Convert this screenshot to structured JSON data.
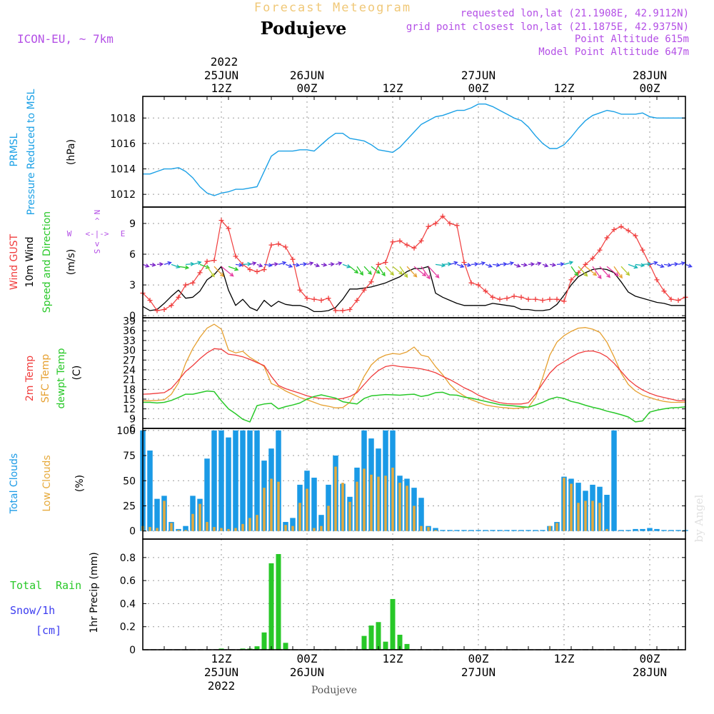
{
  "header": {
    "title_faint": "Forecast Meteogram",
    "place": "Podujeve",
    "model": "ICON-EU, ~ 7km",
    "requested": "requested lon,lat (21.1908E, 42.9112N)",
    "gridpoint": "grid point closest lon,lat (21.1875E, 42.9375N)",
    "point_alt": "Point Altitude 615m",
    "model_alt": "Model Point Altitude 647m",
    "footer_place": "Podujeve",
    "watermark": "by Angel"
  },
  "time_axis": {
    "top_year": "2022",
    "ticks": [
      {
        "h": 12,
        "top": [
          "25JUN",
          "12Z"
        ],
        "bottom": [
          "12Z",
          "25JUN",
          "2022"
        ]
      },
      {
        "h": 24,
        "top": [
          "26JUN",
          "00Z"
        ],
        "bottom": [
          "00Z",
          "26JUN"
        ]
      },
      {
        "h": 36,
        "top": [
          "12Z"
        ],
        "bottom": [
          "12Z"
        ]
      },
      {
        "h": 48,
        "top": [
          "27JUN",
          "00Z"
        ],
        "bottom": [
          "00Z",
          "27JUN"
        ]
      },
      {
        "h": 60,
        "top": [
          "12Z"
        ],
        "bottom": [
          "12Z"
        ]
      },
      {
        "h": 72,
        "top": [
          "28JUN",
          "00Z"
        ],
        "bottom": [
          "00Z",
          "28JUN"
        ]
      }
    ],
    "hour_range": [
      1,
      77
    ]
  },
  "panel_labels": {
    "pressure": {
      "l1": "PRMSL",
      "l2": "Pressure Reduced to MSL",
      "unit": "(hPa)"
    },
    "wind": {
      "l1": "Wind GUST",
      "l2": "10m Wind",
      "l3": "Speed and Direction",
      "unit": "(m/s)",
      "compass": {
        "n": "N",
        "s": "S",
        "w": "W",
        "e": "E",
        "v": "^",
        "h": "<-|->",
        "vd": "v"
      }
    },
    "temp": {
      "l1": "2m Temp",
      "l2": "SFC Temp",
      "l3": "dewpt Temp",
      "unit": "(C)"
    },
    "clouds": {
      "l1": "Total Clouds",
      "l2": "Low Clouds",
      "unit": "(%)"
    },
    "precip": {
      "l1": "Total",
      "l1b": "Rain",
      "l2": "Snow/1h",
      "l3": "[cm]",
      "unit": "1hr Precip (mm)"
    }
  },
  "colors": {
    "pressure": "#1aa0e6",
    "gust": "#f03c3c",
    "wind": "#000000",
    "temp2m": "#f03c3c",
    "sfc": "#e6a030",
    "dew": "#28c828",
    "total_clouds": "#1a9ae6",
    "low_clouds": "#e6aa3c",
    "rain": "#28c828",
    "snow": "#3c3cf0",
    "title_faint": "#f0c878",
    "info": "#b450e6"
  },
  "chart_data": [
    {
      "type": "line",
      "title": "PRMSL Pressure Reduced to MSL",
      "ylabel": "(hPa)",
      "ylim": [
        1011,
        1019.7
      ],
      "yticks": [
        "1012",
        "1014",
        "1016",
        "1018"
      ],
      "series": [
        {
          "name": "PRMSL",
          "values": [
            1013.6,
            1013.6,
            1013.8,
            1014.0,
            1014.0,
            1014.1,
            1013.8,
            1013.3,
            1012.6,
            1012.1,
            1011.9,
            1012.1,
            1012.2,
            1012.4,
            1012.4,
            1012.5,
            1012.6,
            1013.8,
            1015.0,
            1015.4,
            1015.4,
            1015.4,
            1015.5,
            1015.5,
            1015.4,
            1015.9,
            1016.4,
            1016.8,
            1016.8,
            1016.4,
            1016.3,
            1016.2,
            1015.9,
            1015.5,
            1015.4,
            1015.3,
            1015.7,
            1016.3,
            1016.9,
            1017.5,
            1017.8,
            1018.1,
            1018.2,
            1018.4,
            1018.6,
            1018.6,
            1018.8,
            1019.1,
            1019.1,
            1018.9,
            1018.6,
            1018.3,
            1018.0,
            1017.8,
            1017.3,
            1016.6,
            1016.0,
            1015.6,
            1015.6,
            1015.9,
            1016.5,
            1017.2,
            1017.8,
            1018.2,
            1018.4,
            1018.6,
            1018.5,
            1018.3,
            1018.3,
            1018.3,
            1018.4,
            1018.1,
            1018.0,
            1018.0,
            1018.0,
            1018.0,
            1018.0
          ]
        }
      ]
    },
    {
      "type": "line",
      "title": "Wind GUST / 10m Wind Speed and Direction",
      "ylabel": "(m/s)",
      "ylim": [
        -0.2,
        10.6
      ],
      "yticks": [
        "0",
        "3",
        "6",
        "9"
      ],
      "series": [
        {
          "name": "Wind GUST",
          "values": [
            2.2,
            1.5,
            0.5,
            0.6,
            1.0,
            1.8,
            3.0,
            3.2,
            4.2,
            5.3,
            5.4,
            9.3,
            8.5,
            5.8,
            5.0,
            4.5,
            4.3,
            4.5,
            6.9,
            7.0,
            6.7,
            5.5,
            2.5,
            1.7,
            1.6,
            1.5,
            1.7,
            0.5,
            0.5,
            0.6,
            1.5,
            2.5,
            3.3,
            5.0,
            5.2,
            7.2,
            7.3,
            6.9,
            6.6,
            7.3,
            8.7,
            9.0,
            9.7,
            9.0,
            8.8,
            5.2,
            3.2,
            3.0,
            2.4,
            1.8,
            1.6,
            1.7,
            1.9,
            1.8,
            1.6,
            1.6,
            1.5,
            1.6,
            1.6,
            1.4,
            3.5,
            4.2,
            5.0,
            5.6,
            6.4,
            7.6,
            8.4,
            8.7,
            8.3,
            7.8,
            6.4,
            5.0,
            3.5,
            2.4,
            1.6,
            1.5,
            1.8
          ]
        },
        {
          "name": "10m Wind",
          "values": [
            0.9,
            0.5,
            0.6,
            1.2,
            1.9,
            2.5,
            1.7,
            1.8,
            2.4,
            3.5,
            4.0,
            4.8,
            2.5,
            1.0,
            1.6,
            0.8,
            0.5,
            1.5,
            0.9,
            1.4,
            1.1,
            1.0,
            1.0,
            0.8,
            0.4,
            0.4,
            0.5,
            0.8,
            1.6,
            2.6,
            2.6,
            2.7,
            2.8,
            3.0,
            3.2,
            3.5,
            3.8,
            4.3,
            4.6,
            4.6,
            4.8,
            2.2,
            1.8,
            1.5,
            1.2,
            1.0,
            1.0,
            1.0,
            1.0,
            1.2,
            1.1,
            1.0,
            0.9,
            0.6,
            0.6,
            0.5,
            0.5,
            0.6,
            1.1,
            2.0,
            3.0,
            3.8,
            4.2,
            4.5,
            4.6,
            4.5,
            4.2,
            3.3,
            2.3,
            1.9,
            1.7,
            1.5,
            1.3,
            1.2,
            1.0,
            1.0,
            1.0
          ]
        }
      ]
    },
    {
      "type": "line",
      "title": "2m Temp / SFC Temp / dewpt Temp",
      "ylabel": "(C)",
      "ylim": [
        6,
        40
      ],
      "yticks": [
        "6",
        "9",
        "12",
        "15",
        "18",
        "21",
        "24",
        "27",
        "30",
        "33",
        "36",
        "39"
      ],
      "series": [
        {
          "name": "2m Temp",
          "values": [
            16.5,
            16.6,
            16.8,
            17.0,
            18.3,
            20.8,
            23.5,
            25.3,
            27.4,
            29.2,
            30.5,
            30.3,
            28.8,
            28.5,
            28.0,
            27.2,
            26.2,
            25.3,
            22.0,
            19.2,
            18.2,
            17.5,
            16.8,
            16.0,
            15.5,
            15.2,
            15.1,
            15.0,
            15.2,
            15.8,
            17.0,
            19.5,
            21.9,
            23.8,
            25.0,
            25.4,
            25.0,
            24.8,
            24.6,
            24.3,
            23.8,
            23.1,
            22.0,
            21.0,
            19.8,
            18.5,
            17.5,
            16.2,
            15.3,
            14.5,
            13.9,
            13.6,
            13.5,
            13.5,
            13.9,
            16.5,
            19.8,
            23.0,
            25.2,
            26.5,
            27.9,
            29.1,
            29.7,
            29.8,
            29.2,
            28.0,
            26.0,
            23.5,
            21.0,
            19.2,
            17.8,
            16.8,
            16.0,
            15.5,
            15.0,
            14.5,
            14.5
          ]
        },
        {
          "name": "SFC Temp",
          "values": [
            14.5,
            14.5,
            14.6,
            14.8,
            16.5,
            20.0,
            26.0,
            30.5,
            34.0,
            36.8,
            38.0,
            36.5,
            30.1,
            29.2,
            29.7,
            27.8,
            26.5,
            25.0,
            19.8,
            18.8,
            17.5,
            16.5,
            15.5,
            14.8,
            14.0,
            13.2,
            12.8,
            12.3,
            12.4,
            14.0,
            17.5,
            22.0,
            25.5,
            27.5,
            28.5,
            29.0,
            28.8,
            29.5,
            31.0,
            28.5,
            28.0,
            25.0,
            22.5,
            19.5,
            17.4,
            16.0,
            14.8,
            14.0,
            13.2,
            12.8,
            12.5,
            12.3,
            12.1,
            12.3,
            12.5,
            15.5,
            21.5,
            28.5,
            32.5,
            34.5,
            35.8,
            36.8,
            37.0,
            36.5,
            35.5,
            32.5,
            28.0,
            23.0,
            19.5,
            17.5,
            16.2,
            15.5,
            14.8,
            14.3,
            14.0,
            14.0,
            14.0
          ]
        },
        {
          "name": "dewpt Temp",
          "values": [
            14.0,
            14.0,
            13.8,
            14.0,
            14.6,
            15.5,
            16.5,
            16.5,
            17.0,
            17.5,
            17.3,
            14.5,
            12.0,
            10.5,
            8.8,
            8.0,
            13.0,
            13.5,
            13.7,
            12.0,
            12.7,
            13.2,
            13.8,
            15.0,
            15.8,
            16.3,
            15.8,
            15.3,
            14.2,
            13.8,
            13.5,
            15.2,
            16.0,
            16.2,
            16.4,
            16.3,
            16.2,
            16.4,
            16.5,
            15.8,
            16.2,
            17.0,
            17.1,
            16.3,
            16.2,
            15.6,
            15.3,
            14.8,
            14.3,
            13.8,
            13.3,
            13.1,
            12.9,
            12.7,
            12.5,
            13.2,
            14.0,
            15.0,
            15.6,
            15.2,
            14.3,
            13.8,
            13.1,
            12.5,
            12.0,
            11.3,
            10.8,
            10.2,
            9.5,
            8.0,
            8.3,
            11.0,
            11.6,
            12.0,
            12.3,
            12.4,
            12.6
          ]
        }
      ]
    },
    {
      "type": "bar",
      "title": "Total Clouds / Low Clouds",
      "ylabel": "(%)",
      "ylim": [
        -8,
        102
      ],
      "yticks": [
        "0",
        "25",
        "50",
        "75",
        "100"
      ],
      "series": [
        {
          "name": "Total Clouds",
          "values": [
            100,
            80,
            32,
            35,
            9,
            2,
            5,
            35,
            32,
            72,
            100,
            100,
            93,
            100,
            100,
            100,
            100,
            70,
            82,
            100,
            9,
            13,
            46,
            60,
            53,
            16,
            46,
            75,
            47,
            34,
            63,
            100,
            92,
            82,
            100,
            100,
            55,
            52,
            43,
            33,
            5,
            3,
            1,
            1,
            1,
            1,
            1,
            1,
            1,
            1,
            1,
            1,
            1,
            1,
            1,
            1,
            1,
            5,
            9,
            54,
            52,
            48,
            40,
            46,
            44,
            36,
            100,
            1,
            1,
            2,
            2,
            3,
            2,
            1,
            1,
            1,
            1
          ]
        },
        {
          "name": "Low Clouds",
          "values": [
            5,
            4,
            3,
            30,
            8,
            1,
            1,
            17,
            27,
            9,
            4,
            3,
            2,
            3,
            7,
            13,
            16,
            43,
            52,
            49,
            6,
            5,
            28,
            42,
            3,
            5,
            25,
            64,
            48,
            29,
            49,
            62,
            56,
            54,
            55,
            63,
            48,
            45,
            25,
            5,
            4,
            1,
            0,
            0,
            0,
            0,
            0,
            0,
            0,
            0,
            0,
            0,
            0,
            0,
            0,
            0,
            0,
            5,
            8,
            53,
            47,
            28,
            30,
            30,
            28,
            2,
            0,
            0,
            0,
            0,
            0,
            0,
            0,
            0,
            0,
            0,
            0
          ]
        }
      ]
    },
    {
      "type": "bar",
      "title": "1hr Precip",
      "ylabel": "1hr Precip (mm)",
      "ylim": [
        0,
        0.96
      ],
      "yticks": [
        "0",
        "0.2",
        "0.4",
        "0.6",
        "0.8"
      ],
      "series": [
        {
          "name": "Total Rain",
          "values": [
            0,
            0,
            0,
            0,
            0,
            0,
            0,
            0,
            0,
            0,
            0,
            0.01,
            0,
            0,
            0.01,
            0.01,
            0.03,
            0.15,
            0.75,
            0.83,
            0.06,
            0,
            0,
            0,
            0,
            0,
            0,
            0,
            0,
            0,
            0,
            0.12,
            0.21,
            0.24,
            0.07,
            0.44,
            0.13,
            0.05,
            0,
            0,
            0,
            0,
            0,
            0,
            0,
            0,
            0,
            0,
            0,
            0,
            0,
            0,
            0,
            0,
            0,
            0,
            0,
            0,
            0,
            0,
            0,
            0,
            0,
            0,
            0,
            0,
            0,
            0,
            0,
            0,
            0,
            0,
            0,
            0,
            0,
            0,
            0
          ]
        }
      ]
    }
  ]
}
